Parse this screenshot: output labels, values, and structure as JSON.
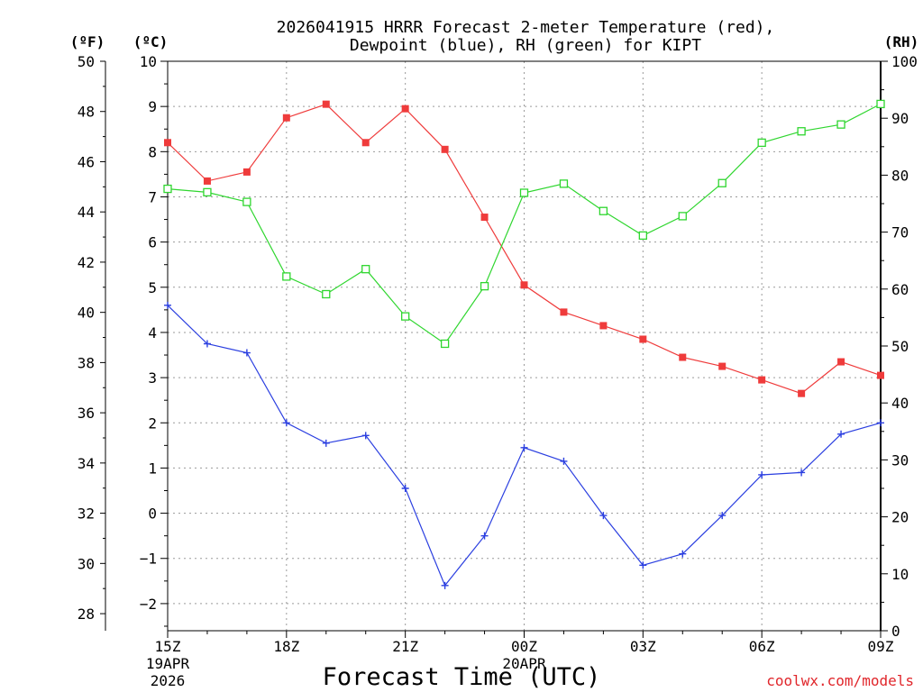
{
  "chart_data": {
    "type": "line",
    "title_line1": "2026041915 HRRR Forecast 2-meter Temperature (red),",
    "title_line2": "Dewpoint (blue), RH (green) for KIPT",
    "xlabel": "Forecast Time (UTC)",
    "credit": "coolwx.com/models",
    "axis_label_f": "(ºF)",
    "axis_label_c": "(ºC)",
    "axis_label_rh": "(RH)",
    "x_hours": [
      0,
      1,
      2,
      3,
      4,
      5,
      6,
      7,
      8,
      9,
      10,
      11,
      12,
      13,
      14,
      15,
      16,
      17,
      18
    ],
    "x_ticks": [
      {
        "hour": 0,
        "label": "15Z",
        "sub1": "19APR",
        "sub2": "2026"
      },
      {
        "hour": 3,
        "label": "18Z",
        "sub1": "",
        "sub2": ""
      },
      {
        "hour": 6,
        "label": "21Z",
        "sub1": "",
        "sub2": ""
      },
      {
        "hour": 9,
        "label": "00Z",
        "sub1": "20APR",
        "sub2": ""
      },
      {
        "hour": 12,
        "label": "03Z",
        "sub1": "",
        "sub2": ""
      },
      {
        "hour": 15,
        "label": "06Z",
        "sub1": "",
        "sub2": ""
      },
      {
        "hour": 18,
        "label": "09Z",
        "sub1": "",
        "sub2": ""
      }
    ],
    "celsius_axis": {
      "min": -2.6,
      "max": 10,
      "ticks": [
        -2,
        -1,
        0,
        1,
        2,
        3,
        4,
        5,
        6,
        7,
        8,
        9,
        10
      ]
    },
    "fahrenheit_axis": {
      "ticks": [
        28,
        30,
        32,
        34,
        36,
        38,
        40,
        42,
        44,
        46,
        48,
        50
      ]
    },
    "rh_axis": {
      "min": 0,
      "max": 100,
      "ticks": [
        0,
        10,
        20,
        30,
        40,
        50,
        60,
        70,
        80,
        90,
        100
      ]
    },
    "series": [
      {
        "name": "Temperature",
        "unit": "C",
        "color": "#ef3b3b",
        "marker": "filled-square",
        "values": [
          8.2,
          7.35,
          7.55,
          8.75,
          9.05,
          8.2,
          8.95,
          8.05,
          6.55,
          5.05,
          4.45,
          4.15,
          3.85,
          3.45,
          3.25,
          2.95,
          2.65,
          3.35,
          3.05
        ]
      },
      {
        "name": "Dewpoint",
        "unit": "C",
        "color": "#2b3fe0",
        "marker": "plus",
        "values": [
          4.6,
          3.75,
          3.55,
          2.0,
          1.55,
          1.72,
          0.55,
          -1.6,
          -0.5,
          1.45,
          1.15,
          -0.05,
          -1.15,
          -0.9,
          -0.05,
          0.85,
          0.9,
          1.75,
          2.0
        ]
      },
      {
        "name": "RH",
        "unit": "%",
        "color": "#2fd62f",
        "marker": "open-square",
        "values": [
          77.6,
          77.0,
          75.3,
          62.2,
          59.1,
          63.5,
          55.2,
          50.4,
          60.5,
          76.9,
          78.5,
          73.7,
          69.4,
          72.8,
          78.6,
          85.7,
          87.7,
          88.9,
          92.5
        ]
      }
    ]
  }
}
